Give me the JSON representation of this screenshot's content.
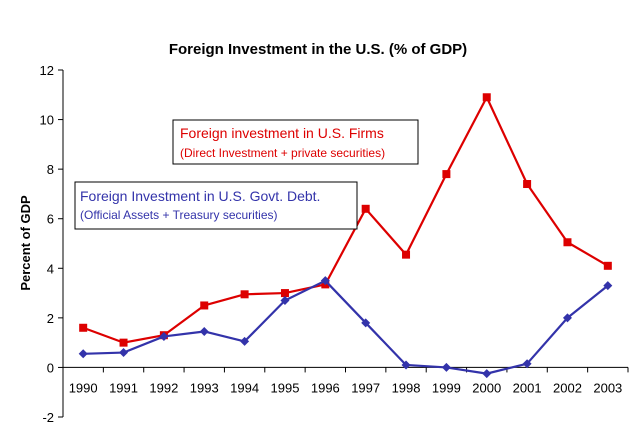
{
  "chart_data": {
    "type": "line",
    "title": "Foreign Investment in the U.S. (% of GDP)",
    "xlabel": "",
    "ylabel": "Percent of GDP",
    "categories": [
      "1990",
      "1991",
      "1992",
      "1993",
      "1994",
      "1995",
      "1996",
      "1997",
      "1998",
      "1999",
      "2000",
      "2001",
      "2002",
      "2003"
    ],
    "ylim": [
      -2,
      12
    ],
    "yticks": [
      -2,
      0,
      2,
      4,
      6,
      8,
      10,
      12
    ],
    "ytick_labels": [
      "-2",
      "0",
      "2",
      "4",
      "6",
      "8",
      "10",
      "12"
    ],
    "grid": false,
    "series": [
      {
        "name": "Foreign investment in U.S. Firms",
        "subtitle": "(Direct Investment + private securities)",
        "color": "#dd0000",
        "marker": "square",
        "values": [
          1.6,
          1.0,
          1.3,
          2.5,
          2.95,
          3.0,
          3.35,
          6.4,
          4.55,
          7.8,
          10.9,
          7.4,
          5.05,
          4.1
        ]
      },
      {
        "name": "Foreign Investment in U.S. Govt. Debt.",
        "subtitle": "(Official Assets + Treasury securities)",
        "color": "#3333aa",
        "marker": "diamond",
        "values": [
          0.55,
          0.6,
          1.25,
          1.45,
          1.05,
          2.7,
          3.5,
          1.8,
          0.1,
          0.0,
          -0.25,
          0.15,
          2.0,
          3.3
        ]
      }
    ]
  }
}
